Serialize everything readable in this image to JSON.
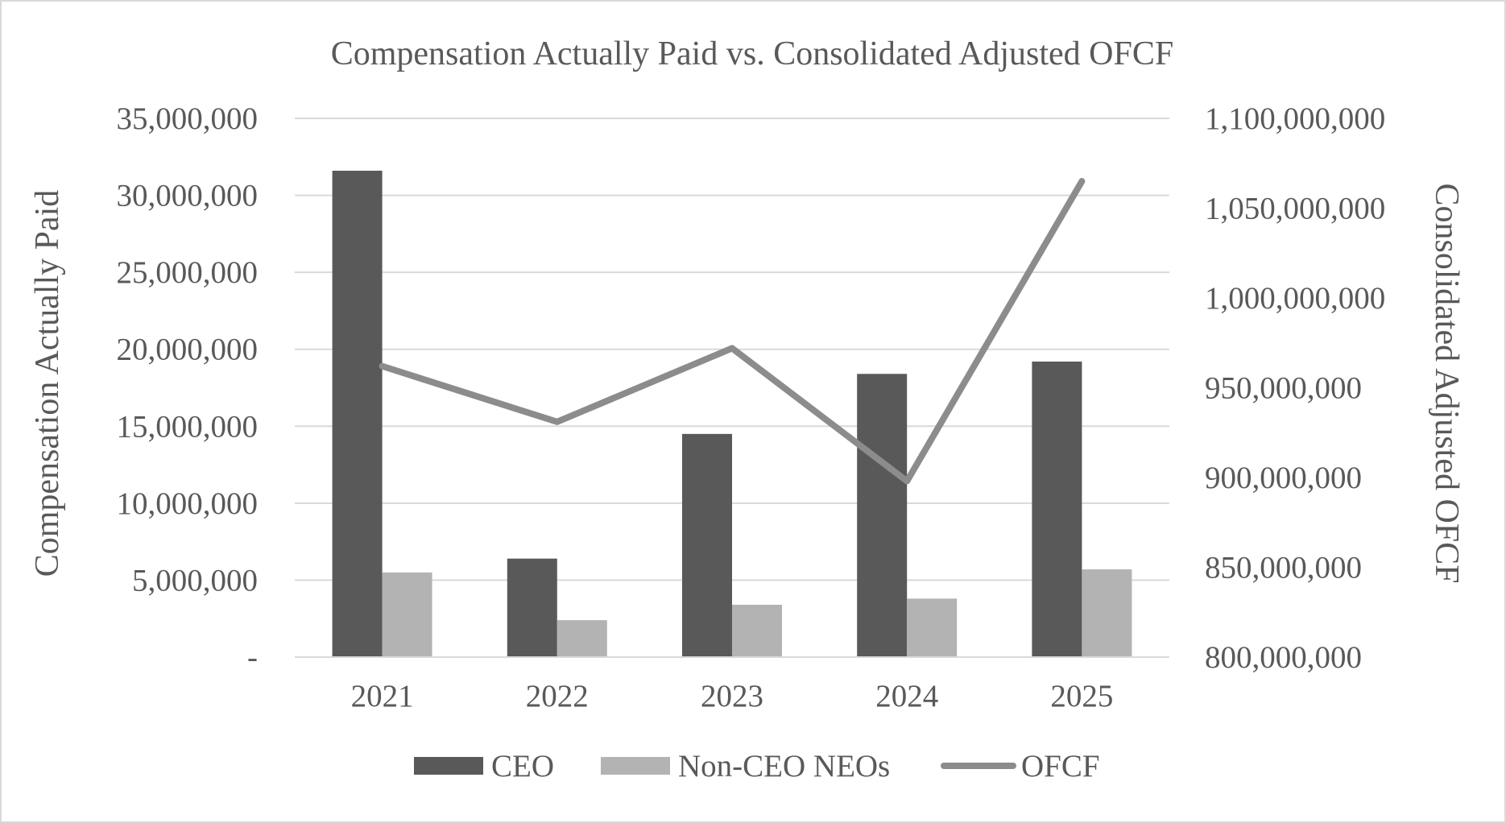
{
  "chart_data": {
    "type": "bar",
    "title": "Compensation Actually Paid vs. Consolidated Adjusted OFCF",
    "categories": [
      "2021",
      "2022",
      "2023",
      "2024",
      "2025"
    ],
    "ylabel": "Compensation Actually Paid",
    "y2label": "Consolidated Adjusted OFCF",
    "ylim": [
      0,
      35000000
    ],
    "y2lim": [
      800000000,
      1100000000
    ],
    "y_ticks": [
      {
        "value": 0,
        "label": "-"
      },
      {
        "value": 5000000,
        "label": "5,000,000"
      },
      {
        "value": 10000000,
        "label": "10,000,000"
      },
      {
        "value": 15000000,
        "label": "15,000,000"
      },
      {
        "value": 20000000,
        "label": "20,000,000"
      },
      {
        "value": 25000000,
        "label": "25,000,000"
      },
      {
        "value": 30000000,
        "label": "30,000,000"
      },
      {
        "value": 35000000,
        "label": "35,000,000"
      }
    ],
    "y2_ticks": [
      {
        "value": 800000000,
        "label": "800,000,000"
      },
      {
        "value": 850000000,
        "label": "850,000,000"
      },
      {
        "value": 900000000,
        "label": "900,000,000"
      },
      {
        "value": 950000000,
        "label": "950,000,000"
      },
      {
        "value": 1000000000,
        "label": "1,000,000,000"
      },
      {
        "value": 1050000000,
        "label": "1,050,000,000"
      },
      {
        "value": 1100000000,
        "label": "1,100,000,000"
      }
    ],
    "series": [
      {
        "name": "CEO",
        "type": "bar",
        "axis": "left",
        "color": "#595959",
        "values": [
          31600000,
          6400000,
          14500000,
          18400000,
          19200000
        ]
      },
      {
        "name": "Non-CEO NEOs",
        "type": "bar",
        "axis": "left",
        "color": "#b3b3b3",
        "values": [
          5500000,
          2400000,
          3400000,
          3800000,
          5700000
        ]
      },
      {
        "name": "OFCF",
        "type": "line",
        "axis": "right",
        "color": "#8c8c8c",
        "values": [
          962000000,
          931000000,
          972000000,
          898000000,
          1065000000
        ]
      }
    ],
    "grid": true,
    "legend_position": "bottom"
  }
}
